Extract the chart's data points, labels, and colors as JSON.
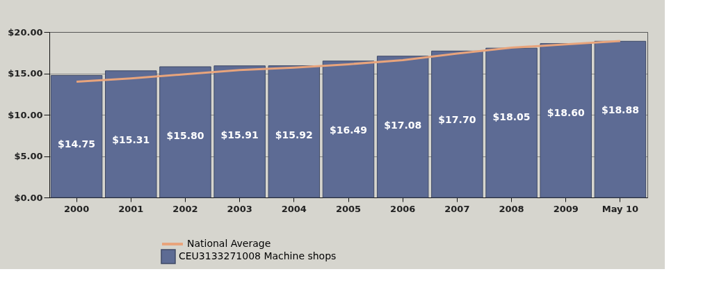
{
  "chart_data": {
    "type": "bar",
    "categories": [
      "2000",
      "2001",
      "2002",
      "2003",
      "2004",
      "2005",
      "2006",
      "2007",
      "2008",
      "2009",
      "May 10"
    ],
    "series": [
      {
        "name": "CEU3133271008   Machine shops",
        "color": "#5d6b94",
        "values": [
          14.75,
          15.31,
          15.8,
          15.91,
          15.92,
          16.49,
          17.08,
          17.7,
          18.05,
          18.6,
          18.88
        ],
        "value_labels": [
          "$14.75",
          "$15.31",
          "$15.80",
          "$15.91",
          "$15.92",
          "$16.49",
          "$17.08",
          "$17.70",
          "$18.05",
          "$18.60",
          "$18.88"
        ]
      },
      {
        "name": "National Average",
        "type": "line",
        "color": "#e8a47c",
        "values": [
          14.0,
          14.4,
          14.9,
          15.4,
          15.7,
          16.1,
          16.6,
          17.4,
          18.1,
          18.5,
          18.9
        ]
      }
    ],
    "ylim": [
      0,
      20
    ],
    "yticks": [
      {
        "value": 0,
        "label": "$0.00"
      },
      {
        "value": 5,
        "label": "$5.00"
      },
      {
        "value": 10,
        "label": "$10.00"
      },
      {
        "value": 15,
        "label": "$15.00"
      },
      {
        "value": 20,
        "label": "$20.00"
      }
    ],
    "grid": "y",
    "legend": "bottom",
    "marker": "none",
    "line_style": "solid"
  }
}
